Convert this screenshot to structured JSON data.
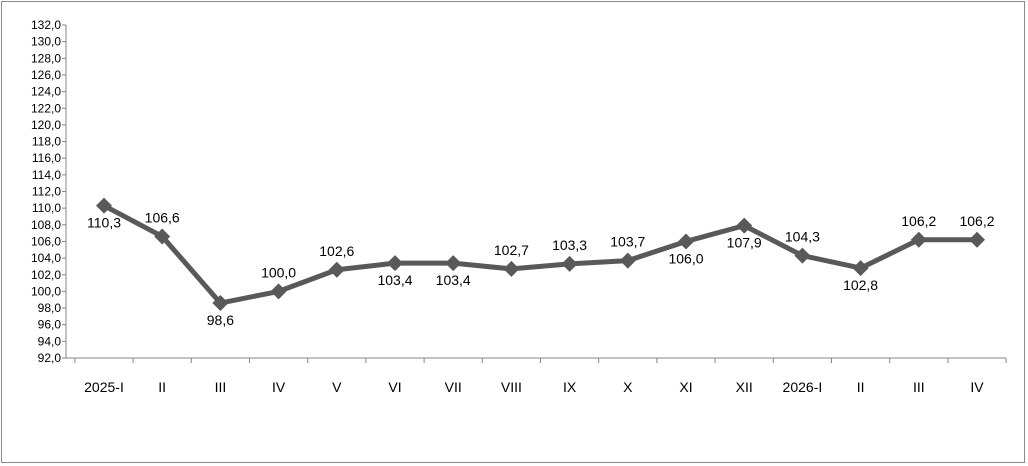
{
  "chart_data": {
    "type": "line",
    "title": "",
    "xlabel": "",
    "ylabel": "",
    "ylim": [
      92.0,
      132.0
    ],
    "y_ticks": [
      "92,0",
      "94,0",
      "96,0",
      "98,0",
      "100,0",
      "102,0",
      "104,0",
      "106,0",
      "108,0",
      "110,0",
      "112,0",
      "114,0",
      "116,0",
      "118,0",
      "120,0",
      "122,0",
      "124,0",
      "126,0",
      "128,0",
      "130,0",
      "132,0"
    ],
    "categories": [
      "2025-I",
      "II",
      "III",
      "IV",
      "V",
      "VI",
      "VII",
      "VIII",
      "IX",
      "X",
      "XI",
      "XII",
      "2026-I",
      "II",
      "III",
      "IV"
    ],
    "series": [
      {
        "values": [
          110.3,
          106.6,
          98.6,
          100.0,
          102.6,
          103.4,
          103.4,
          102.7,
          103.3,
          103.7,
          106.0,
          107.9,
          104.3,
          102.8,
          106.2,
          106.2
        ],
        "labels": [
          "110,3",
          "106,6",
          "98,6",
          "100,0",
          "102,6",
          "103,4",
          "103,4",
          "102,7",
          "103,3",
          "103,7",
          "106,0",
          "107,9",
          "104,3",
          "102,8",
          "106,2",
          "106,2"
        ],
        "label_positions": [
          "below",
          "above",
          "below",
          "above",
          "above",
          "below",
          "below",
          "above",
          "above",
          "above",
          "below",
          "below",
          "above",
          "below",
          "above",
          "above"
        ]
      }
    ],
    "grid": false,
    "line_color": "#595959",
    "marker": "diamond"
  }
}
